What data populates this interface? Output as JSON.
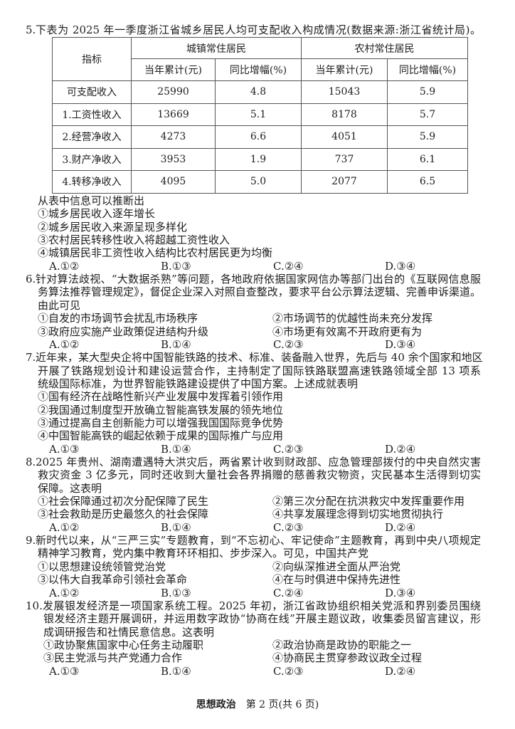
{
  "q5": {
    "number": "5.",
    "title": "下表为 2025 年一季度浙江省城乡居民人均可支配收入构成情况(数据来源:浙江省统计局)。",
    "table": {
      "corner": "指标",
      "groups": [
        "城镇常住居民",
        "农村常住居民"
      ],
      "subheaders": [
        "当年累计(元)",
        "同比增幅(%)",
        "当年累计(元)",
        "同比增幅(%)"
      ],
      "rows": [
        [
          "可支配收入",
          "25990",
          "4.8",
          "15043",
          "5.9"
        ],
        [
          "1.工资性收入",
          "13669",
          "5.1",
          "8178",
          "5.7"
        ],
        [
          "2.经营净收入",
          "4273",
          "6.6",
          "4051",
          "5.9"
        ],
        [
          "3.财产净收入",
          "3953",
          "1.9",
          "737",
          "6.1"
        ],
        [
          "4.转移净收入",
          "4095",
          "5.0",
          "2077",
          "6.5"
        ]
      ]
    }
  },
  "questions": [
    {
      "number": "",
      "stem": [
        "从表中信息可以推断出"
      ],
      "options_layout": "single",
      "options": [
        "①城乡居民收入逐年增长",
        "②城乡居民收入来源呈现多样化",
        "③农村居民转移性收入将超越工资性收入",
        "④城镇居民非工资性收入结构比农村居民更为均衡"
      ],
      "answers": [
        "A.①②",
        "B.①③",
        "C.②④",
        "D.③④"
      ]
    },
    {
      "number": "6.",
      "stem": [
        "针对算法歧视、“大数据杀熟”等问题，各地政府依据国家网信办等部门出台的《互联网信息服",
        "务算法推荐管理规定》，督促企业深入对照自查整改，要求平台公示算法逻辑、完善申诉渠道。",
        "由此可见"
      ],
      "options_layout": "double",
      "options": [
        "①自发的市场调节会扰乱市场秩序",
        "②市场调节的优越性尚未充分发挥",
        "③政府应实施产业政策促进结构升级",
        "④市场更有效离不开政府更有为"
      ],
      "answers": [
        "A.①②",
        "B.①④",
        "C.②③",
        "D.③④"
      ]
    },
    {
      "number": "7.",
      "stem": [
        "近年来，某大型央企将中国智能铁路的技术、标准、装备融入世界，先后与 40 余个国家和地区",
        "开展了铁路规划设计和建设运营合作，主持制定了国际铁路联盟高速铁路领域全部 13 项系",
        "统级国际标准，为世界智能铁路建设提供了中国方案。上述成就表明"
      ],
      "options_layout": "single",
      "options": [
        "①国有经济在战略性新兴产业发展中发挥着引领作用",
        "②我国通过制度型开放确立智能高铁发展的领先地位",
        "③通过提高自主创新能力可以增强我国国际竞争优势",
        "④中国智能高铁的崛起依赖于成果的国际推广与应用"
      ],
      "answers": [
        "A.①③",
        "B.①④",
        "C.②③",
        "D.②④"
      ]
    },
    {
      "number": "8.",
      "stem": [
        "2025 年贵州、湖南遭遇特大洪灾后，两省累计收到财政部、应急管理部拨付的中央自然灾害",
        "救灾资金 3 亿多元，同时还收到大量社会各界捐赠的慈善救灾物资，灾民基本生活得到切实",
        "保障。这表明"
      ],
      "options_layout": "double",
      "options": [
        "①社会保障通过初次分配保障了民生",
        "②第三次分配在抗洪救灾中发挥重要作用",
        "③社会救助是历史最悠久的社会保障",
        "④共享发展理念得到切实地贯彻执行"
      ],
      "answers": [
        "A.①②",
        "B.①④",
        "C.②③",
        "D.②④"
      ]
    },
    {
      "number": "9.",
      "stem": [
        "新时代以来，从“三严三实”专题教育，到“不忘初心、牢记使命”主题教育，再到中央八项规定",
        "精神学习教育，党内集中教育环环相扣、步步深入。可见，中国共产党"
      ],
      "options_layout": "double",
      "options": [
        "①以思想建设统领管党治党",
        "②向纵深推进全面从严治党",
        "③以伟大自我革命引领社会革命",
        "④在与时俱进中保持先进性"
      ],
      "answers": [
        "A.①②",
        "B.①③",
        "C.②④",
        "D.③④"
      ]
    },
    {
      "number": "10.",
      "stem": [
        "发展银发经济是一项国家系统工程。2025 年初，浙江省政协组织相关党派和界别委员围绕",
        "银发经济主题开展调研，并运用数字政协“协商在线”开展主题议政，收集委员留言建议，形",
        "成调研报告和社情民意信息。这表明"
      ],
      "options_layout": "double",
      "options": [
        "①政协聚焦国家中心任务主动履职",
        "②政治协商是政协的职能之一",
        "③民主党派与共产党通力合作",
        "④协商民主贯穿参政议政全过程"
      ],
      "answers": [
        "A.①③",
        "B.①④",
        "C.②③",
        "D.②④"
      ]
    }
  ],
  "footer": {
    "subject": "思想政治",
    "page": "第 2 页(共 6 页)"
  }
}
